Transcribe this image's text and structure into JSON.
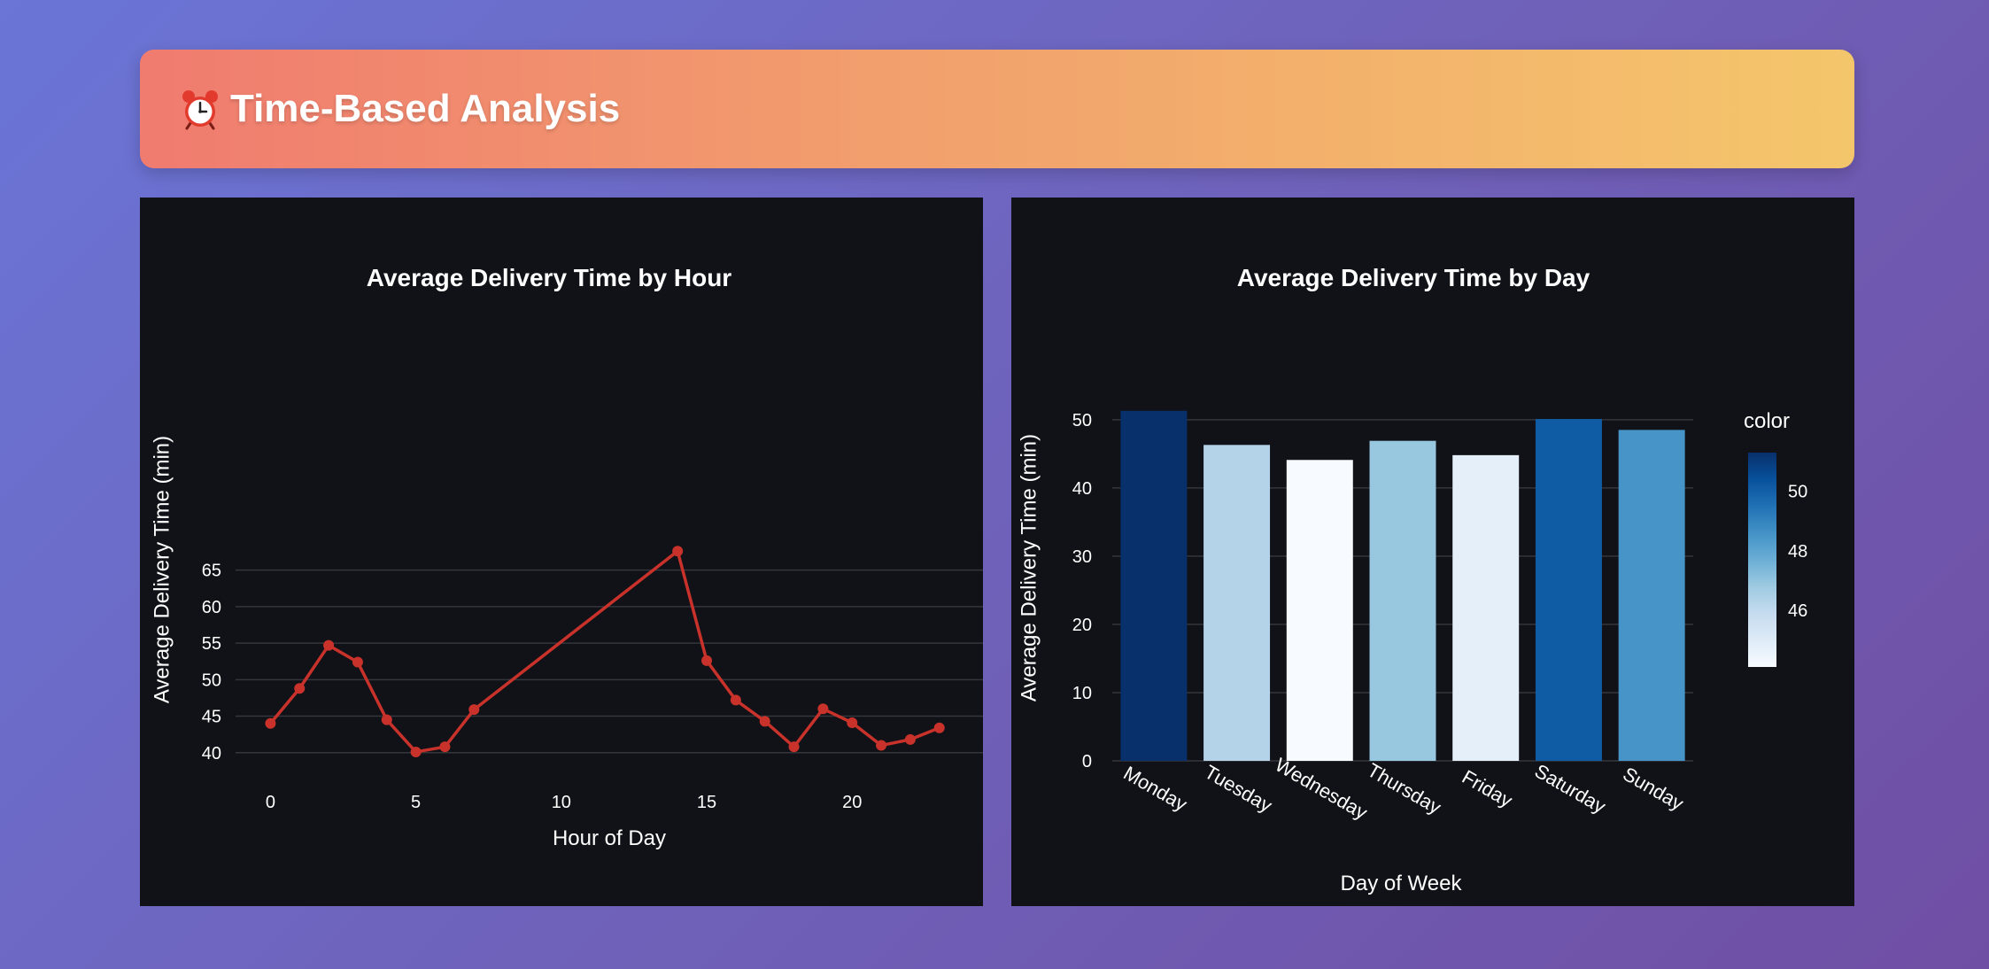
{
  "header": {
    "title": "Time-Based Analysis",
    "icon": "alarm-clock-icon"
  },
  "colors": {
    "line": "#c8322b",
    "panel_bg": "#111217",
    "gradient_start": "#f07b6f",
    "gradient_end": "#f4c66b"
  },
  "chart_data": [
    {
      "type": "line",
      "title": "Average Delivery Time by Hour",
      "xlabel": "Hour of Day",
      "ylabel": "Average Delivery Time (min)",
      "x": [
        0,
        1,
        2,
        3,
        4,
        5,
        6,
        7,
        14,
        15,
        16,
        17,
        18,
        19,
        20,
        21,
        22,
        23
      ],
      "y": [
        44.0,
        48.8,
        54.7,
        52.4,
        44.5,
        40.1,
        40.8,
        45.9,
        67.6,
        52.6,
        47.2,
        44.3,
        40.8,
        46.0,
        44.1,
        41.0,
        41.8,
        43.4
      ],
      "xticks": [
        0,
        5,
        10,
        15,
        20
      ],
      "yticks": [
        40,
        45,
        50,
        55,
        60,
        65
      ],
      "xlim": [
        -1.2,
        24.5
      ],
      "ylim": [
        35.0,
        70.9
      ],
      "grid": true
    },
    {
      "type": "bar",
      "title": "Average Delivery Time by Day",
      "xlabel": "Day of Week",
      "ylabel": "Average Delivery Time (min)",
      "categories": [
        "Monday",
        "Tuesday",
        "Wednesday",
        "Thursday",
        "Friday",
        "Saturday",
        "Sunday"
      ],
      "values": [
        51.3,
        46.3,
        44.1,
        46.9,
        44.8,
        50.1,
        48.5
      ],
      "yticks": [
        0,
        10,
        20,
        30,
        40,
        50
      ],
      "ylim": [
        0,
        54
      ],
      "grid": true,
      "colorbar": {
        "title": "color",
        "ticks": [
          46,
          48,
          50
        ],
        "range": [
          44.1,
          51.3
        ],
        "colorscale": "Blues"
      }
    }
  ]
}
